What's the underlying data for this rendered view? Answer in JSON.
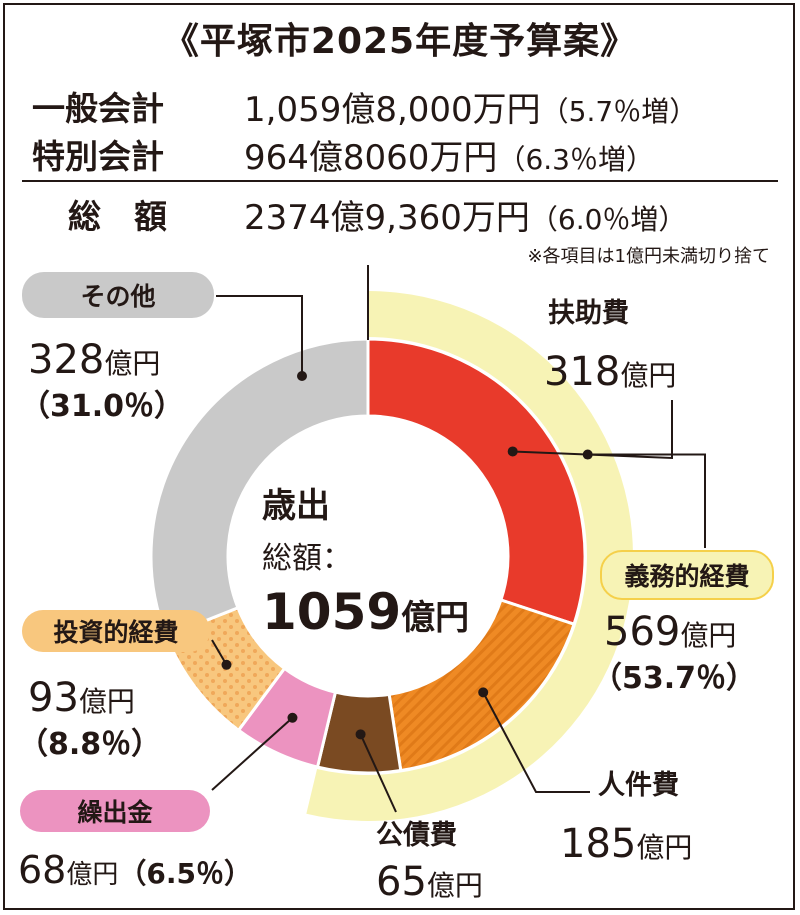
{
  "title": "《平塚市2025年度予算案》",
  "summary": [
    {
      "label": "一般会計",
      "value": "1,059億8,000万円",
      "change": "（5.7％増）"
    },
    {
      "label": "特別会計",
      "value": "964億8060万円",
      "change": "（6.3％増）"
    },
    {
      "label": "総　額",
      "value": "2374億9,360万円",
      "change": "（6.0％増）"
    }
  ],
  "note": "※各項目は1億円未満切り捨て",
  "center": {
    "line1": "歳出",
    "line2": "総額：",
    "line3": "1059",
    "line3_unit": "億円"
  },
  "labels": {
    "fuyo": {
      "name": "扶助費",
      "amount": "318",
      "unit": "億円"
    },
    "gimu": {
      "name": "義務的経費",
      "amount": "569",
      "unit": "億円",
      "pct": "（53.7％）"
    },
    "jinken": {
      "name": "人件費",
      "amount": "185",
      "unit": "億円"
    },
    "kosai": {
      "name": "公債費",
      "amount": "65",
      "unit": "億円"
    },
    "kuridashi": {
      "name": "繰出金",
      "amount": "68",
      "unit": "億円",
      "pct": "（6.5％）"
    },
    "toshi": {
      "name": "投資的経費",
      "amount": "93",
      "unit": "億円",
      "pct": "（8.8％）"
    },
    "sonota": {
      "name": "その他",
      "amount": "328",
      "unit": "億円",
      "pct": "（31.0％）"
    }
  },
  "chart_data": {
    "type": "pie",
    "title": "歳出 総額：1059億円",
    "unit": "億円",
    "slices": [
      {
        "name": "扶助費",
        "value": 318,
        "color": "#e83a2b"
      },
      {
        "name": "人件費",
        "value": 185,
        "color": "#ef8a24"
      },
      {
        "name": "公債費",
        "value": 65,
        "color": "#7a4a22"
      },
      {
        "name": "繰出金",
        "value": 68,
        "color": "#ec93c0"
      },
      {
        "name": "投資的経費",
        "value": 93,
        "color": "#f8c77e"
      },
      {
        "name": "その他",
        "value": 328,
        "color": "#c9c9c9"
      }
    ],
    "groups": [
      {
        "name": "義務的経費",
        "members": [
          "扶助費",
          "人件費",
          "公債費"
        ],
        "value": 569,
        "percent": 53.7,
        "color": "#f7f3b5"
      }
    ]
  }
}
